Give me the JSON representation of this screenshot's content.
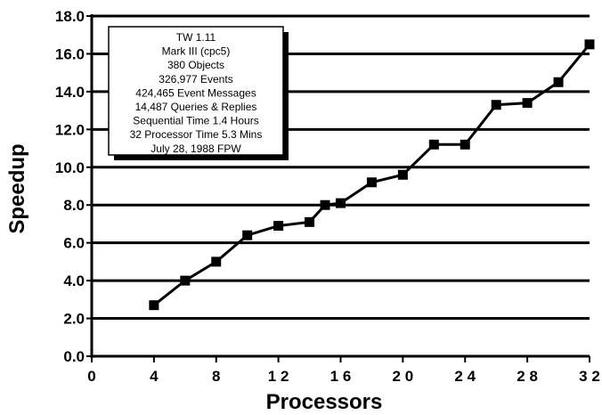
{
  "chart_data": {
    "type": "line",
    "xlabel": "Processors",
    "ylabel": "Speedup",
    "xlim": [
      0,
      32
    ],
    "ylim": [
      0,
      18
    ],
    "grid": "horizontal",
    "x_ticks": [
      "0",
      "4",
      "8",
      "1 2",
      "1 6",
      "2 0",
      "2 4",
      "2 8",
      "3 2"
    ],
    "y_ticks": [
      "0.0",
      "2.0",
      "4.0",
      "6.0",
      "8.0",
      "10.0",
      "12.0",
      "14.0",
      "16.0",
      "18.0"
    ],
    "series": [
      {
        "marker": "square",
        "color": "#000000",
        "x": [
          4,
          6,
          8,
          10,
          12,
          14,
          15,
          16,
          18,
          20,
          22,
          24,
          26,
          28,
          30,
          32
        ],
        "y": [
          2.7,
          4.0,
          5.0,
          6.4,
          6.9,
          7.1,
          8.0,
          8.1,
          9.2,
          9.6,
          11.2,
          11.2,
          13.3,
          13.4,
          14.5,
          16.5
        ]
      }
    ],
    "annotation": {
      "lines": [
        "TW 1.11",
        "Mark III (cpc5)",
        "380  Objects",
        "326,977  Events",
        "424,465 Event Messages",
        "14,487  Queries & Replies",
        "Sequential Time 1.4 Hours",
        "32 Processor Time 5.3 Mins",
        "July 28, 1988 FPW"
      ]
    }
  }
}
